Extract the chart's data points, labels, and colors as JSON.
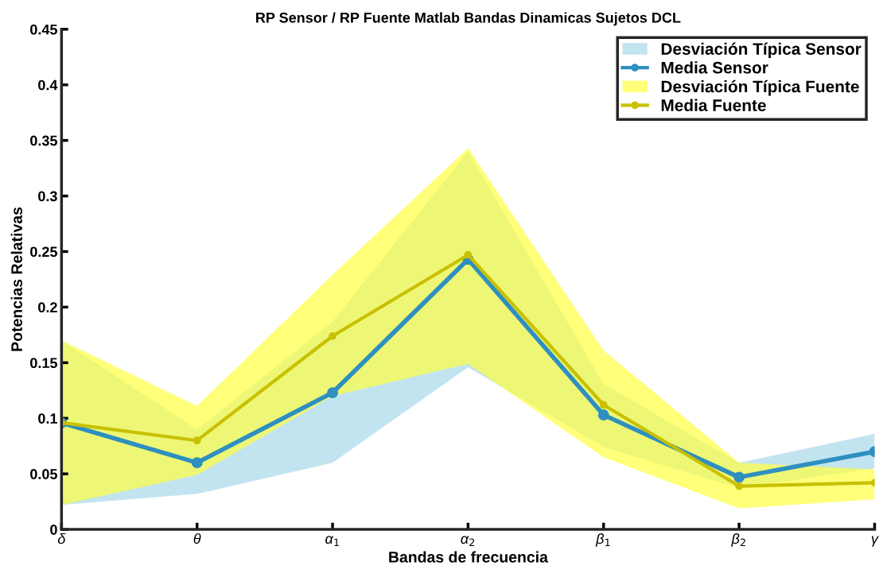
{
  "chart_data": {
    "type": "line",
    "title": "RP Sensor / RP Fuente Matlab Bandas Dinamicas Sujetos DCL",
    "xlabel": "Bandas de frecuencia",
    "ylabel": "Potencias Relativas",
    "categories": [
      "δ",
      "θ",
      "α$_{1}$",
      "α$_{2}$",
      "β$_{1}$",
      "β$_{2}$",
      "γ"
    ],
    "ylim": [
      0,
      0.45
    ],
    "yticks": [
      0,
      0.05,
      0.1,
      0.15,
      0.2,
      0.25,
      0.3,
      0.35,
      0.4,
      0.45
    ],
    "grid": false,
    "legend": "top right",
    "marker": "circle",
    "series": [
      {
        "type": "area",
        "name": "Desviación Típica Sensor",
        "color": "#a8d8ea",
        "values": [
          null,
          null,
          null,
          null,
          null,
          null,
          null
        ],
        "lower": [
          0.022,
          0.032,
          0.06,
          0.146,
          0.074,
          0.037,
          0.055
        ],
        "upper": [
          0.17,
          0.09,
          0.187,
          0.34,
          0.131,
          0.06,
          0.086
        ]
      },
      {
        "name": "Media Sensor",
        "color": "#2e8fc0",
        "values": [
          0.096,
          0.06,
          0.123,
          0.243,
          0.103,
          0.047,
          0.07
        ]
      },
      {
        "type": "area",
        "name": "Desviación Típica Fuente",
        "color": "#ffff40",
        "values": [
          null,
          null,
          null,
          null,
          null,
          null,
          null
        ],
        "lower": [
          0.022,
          0.049,
          0.12,
          0.149,
          0.065,
          0.019,
          0.027
        ],
        "upper": [
          0.17,
          0.111,
          0.229,
          0.343,
          0.161,
          0.06,
          0.054
        ]
      },
      {
        "name": "Media Fuente",
        "color": "#c8c000",
        "values": [
          0.096,
          0.08,
          0.174,
          0.247,
          0.112,
          0.039,
          0.042
        ]
      }
    ]
  }
}
